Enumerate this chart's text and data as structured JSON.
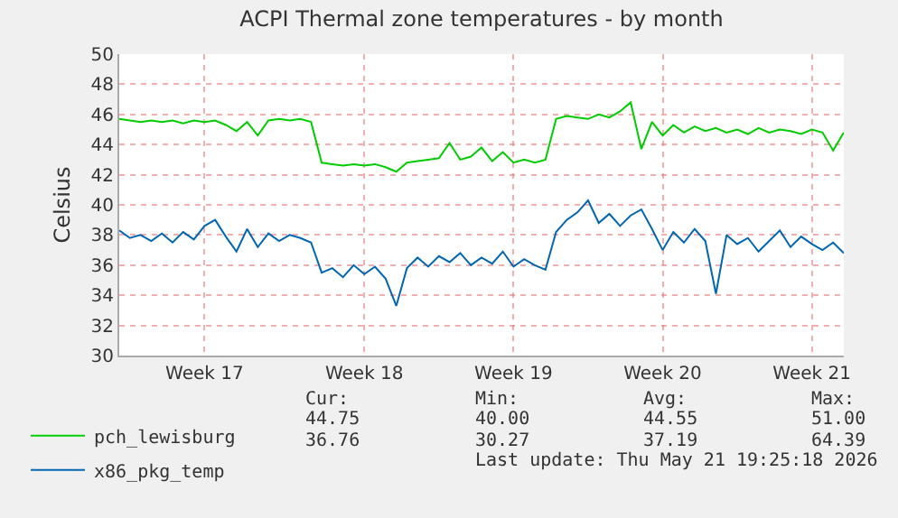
{
  "chart_data": {
    "type": "line",
    "title": "ACPI Thermal zone temperatures - by month",
    "ylabel": "Celsius",
    "categories": [
      null,
      null,
      null,
      null,
      null,
      null,
      null,
      null,
      "Week 17",
      null,
      null,
      null,
      null,
      null,
      null,
      null,
      null,
      null,
      null,
      null,
      null,
      null,
      null,
      "Week 18",
      null,
      null,
      null,
      null,
      null,
      null,
      null,
      null,
      null,
      null,
      null,
      null,
      null,
      "Week 19",
      null,
      null,
      null,
      null,
      null,
      null,
      null,
      null,
      null,
      null,
      null,
      null,
      null,
      "Week 20",
      null,
      null,
      null,
      null,
      null,
      null,
      null,
      null,
      null,
      null,
      null,
      null,
      null,
      "Week 21",
      null,
      null,
      null
    ],
    "series": [
      {
        "name": "pch_lewisburg",
        "color": "#00cc00",
        "values": [
          45.7,
          45.6,
          45.5,
          45.6,
          45.5,
          45.6,
          45.4,
          45.6,
          45.5,
          45.6,
          45.3,
          44.9,
          45.5,
          44.6,
          45.6,
          45.7,
          45.6,
          45.7,
          45.5,
          42.8,
          42.7,
          42.6,
          42.7,
          42.6,
          42.7,
          42.5,
          42.2,
          42.8,
          42.9,
          43.0,
          43.1,
          44.1,
          43.0,
          43.2,
          43.8,
          42.9,
          43.5,
          42.8,
          43.0,
          42.8,
          43.0,
          45.7,
          45.9,
          45.8,
          45.7,
          46.0,
          45.8,
          46.2,
          46.8,
          43.7,
          45.5,
          44.6,
          45.3,
          44.8,
          45.2,
          44.9,
          45.1,
          44.8,
          45.0,
          44.7,
          45.1,
          44.8,
          45.0,
          44.9,
          44.7,
          45.0,
          44.8,
          43.6,
          44.8
        ]
      },
      {
        "name": "x86_pkg_temp",
        "color": "#0066b3",
        "values": [
          38.3,
          37.8,
          38.0,
          37.6,
          38.1,
          37.5,
          38.2,
          37.7,
          38.6,
          39.0,
          37.9,
          36.9,
          38.4,
          37.2,
          38.1,
          37.6,
          38.0,
          37.8,
          37.5,
          35.5,
          35.8,
          35.2,
          36.0,
          35.4,
          35.9,
          35.1,
          33.3,
          35.8,
          36.5,
          35.9,
          36.6,
          36.2,
          36.8,
          36.0,
          36.5,
          36.1,
          36.9,
          35.9,
          36.4,
          36.0,
          35.7,
          38.2,
          39.0,
          39.5,
          40.3,
          38.8,
          39.4,
          38.6,
          39.3,
          39.7,
          38.4,
          37.0,
          38.2,
          37.5,
          38.4,
          37.6,
          34.1,
          38.0,
          37.4,
          37.8,
          36.9,
          37.6,
          38.3,
          37.2,
          37.9,
          37.4,
          37.0,
          37.5,
          36.8
        ]
      }
    ],
    "ylim": [
      30,
      50
    ],
    "yticks": [
      30,
      32,
      34,
      36,
      38,
      40,
      42,
      44,
      46,
      48,
      50
    ],
    "grid": true,
    "legend": "bottom left",
    "marker": "none",
    "line_style": "solid",
    "annotations": [
      "Cur:",
      "Min:",
      "Avg:",
      "Max:",
      "44.75",
      "40.00",
      "44.55",
      "51.00",
      "36.76",
      "30.27",
      "37.19",
      "64.39",
      "Last update: Thu May 21 19:25:18 2026"
    ]
  }
}
